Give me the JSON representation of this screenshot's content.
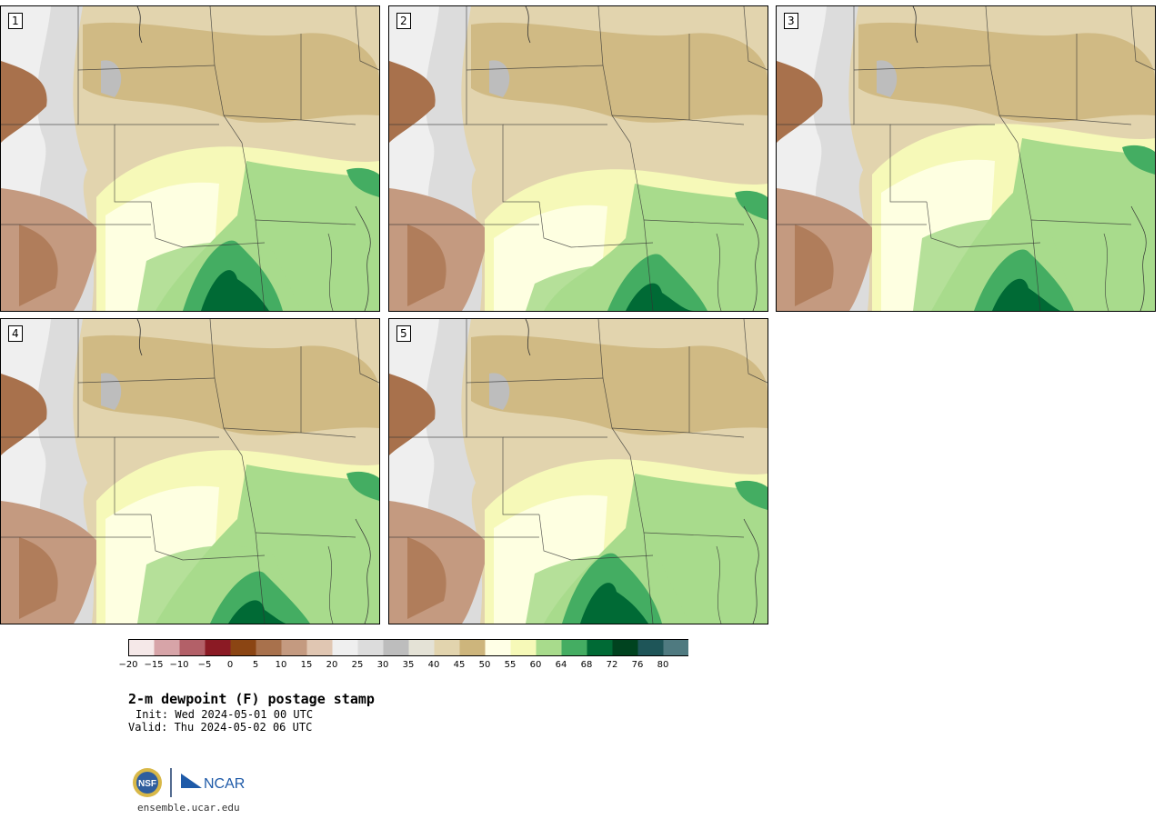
{
  "panels": [
    {
      "label": "1"
    },
    {
      "label": "2"
    },
    {
      "label": "3"
    },
    {
      "label": "4"
    },
    {
      "label": "5"
    }
  ],
  "colorbar": {
    "colors": [
      "#f5e8e8",
      "#d7a4a8",
      "#b36068",
      "#8b1a24",
      "#8b4513",
      "#a8714c",
      "#c49a80",
      "#e0c6b2",
      "#efefef",
      "#dcdcdc",
      "#bdbdbd",
      "#e4e2d6",
      "#e2d4ae",
      "#cdb57c",
      "#ffffe6",
      "#f6f9b8",
      "#a8db8c",
      "#44ad62",
      "#006a35",
      "#00431f",
      "#1e5558",
      "#4f7a80"
    ],
    "ticks": [
      "-20",
      "-15",
      "-10",
      "-5",
      "0",
      "5",
      "10",
      "15",
      "20",
      "25",
      "30",
      "35",
      "40",
      "45",
      "50",
      "55",
      "60",
      "64",
      "68",
      "72",
      "76",
      "80"
    ]
  },
  "title": "2-m dewpoint (F) postage stamp",
  "init": "Init: Wed 2024-05-01 00 UTC",
  "valid": "Valid: Thu 2024-05-02 06 UTC",
  "logo": {
    "nsf": "NSF",
    "ncar": "NCAR"
  },
  "url": "ensemble.ucar.edu"
}
